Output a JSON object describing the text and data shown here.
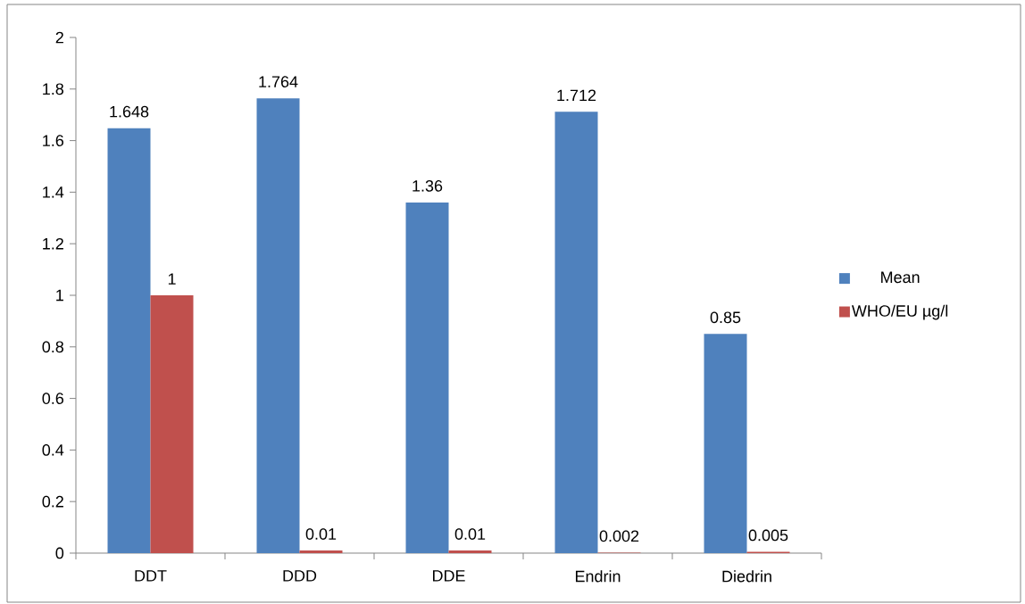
{
  "chart_data": {
    "type": "bar",
    "categories": [
      "DDT",
      "DDD",
      "DDE",
      "Endrin",
      "Diedrin"
    ],
    "series": [
      {
        "name": "Mean",
        "color": "#4f81bd",
        "values": [
          1.648,
          1.764,
          1.36,
          1.712,
          0.85
        ]
      },
      {
        "name": "WHO/EU µg/l",
        "color": "#c0504d",
        "values": [
          1,
          0.01,
          0.01,
          0.002,
          0.005
        ]
      }
    ],
    "ylim": [
      0,
      2
    ],
    "yticks": [
      0,
      0.2,
      0.4,
      0.6,
      0.8,
      1,
      1.2,
      1.4,
      1.6,
      1.8,
      2
    ],
    "data_labels": true,
    "legend": "right",
    "grid": false
  }
}
